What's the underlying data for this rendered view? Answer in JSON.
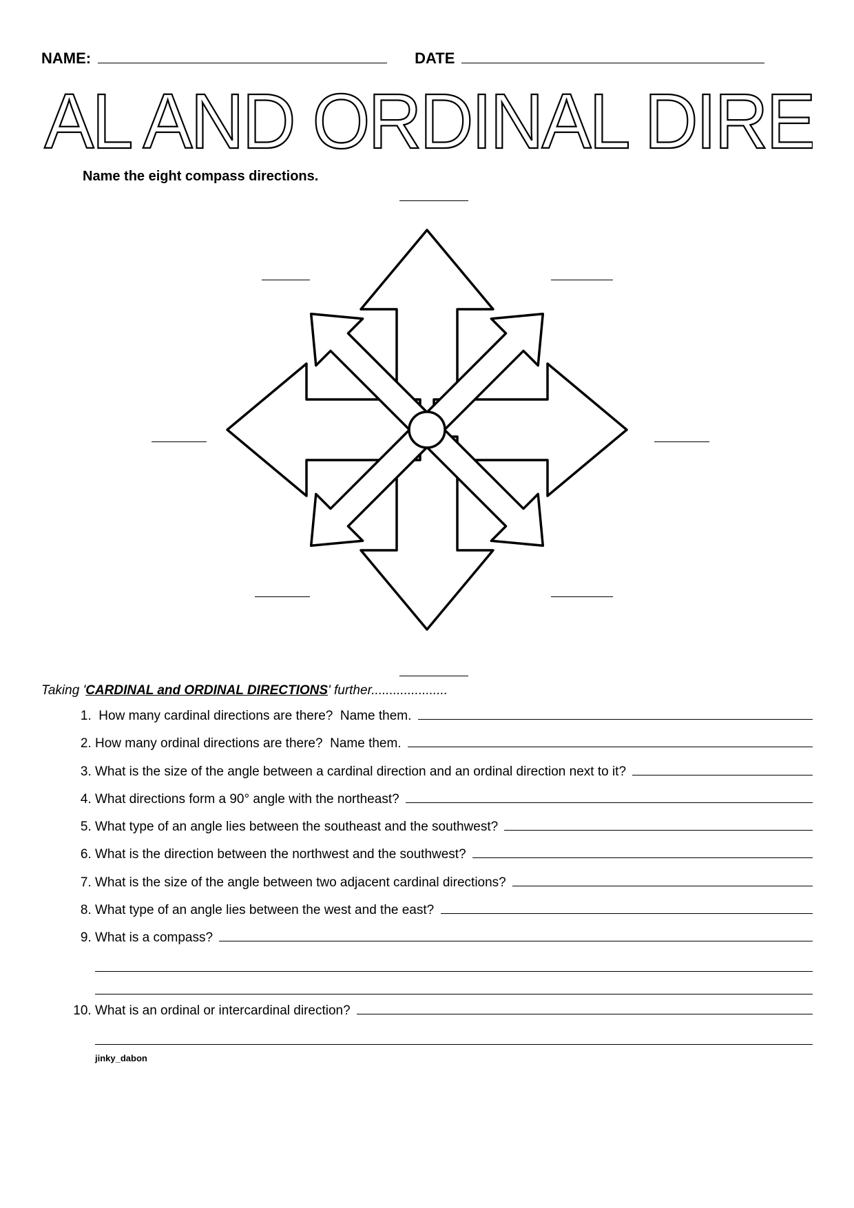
{
  "header": {
    "name_label": "NAME:",
    "date_label": "DATE"
  },
  "title": "CARDINAL AND ORDINAL DIRECTIONS",
  "instruction": "Name the eight compass directions.",
  "compass": {
    "stroke": "#000000",
    "fill": "#ffffff",
    "stroke_width": 3.5
  },
  "further": {
    "prefix": "Taking '",
    "bold": "CARDINAL and ORDINAL DIRECTIONS",
    "suffix": "' further....................."
  },
  "questions": [
    {
      "text": " How many cardinal directions are there?  Name them. ",
      "extra_lines": 0
    },
    {
      "text": "How many ordinal directions are there?  Name them. ",
      "extra_lines": 0
    },
    {
      "text": "What is the size of the angle between a cardinal direction and an ordinal direction next to it? ",
      "extra_lines": 0
    },
    {
      "text": "What directions form a 90° angle with the northeast? ",
      "extra_lines": 0
    },
    {
      "text": "What type of an angle lies between the southeast and the southwest? ",
      "extra_lines": 0
    },
    {
      "text": "What is the direction between the northwest and the southwest? ",
      "extra_lines": 0
    },
    {
      "text": "What is the size of the angle between two adjacent cardinal directions? ",
      "extra_lines": 0
    },
    {
      "text": "What type of an angle lies between the west and the east? ",
      "extra_lines": 0
    },
    {
      "text": "What is a compass? ",
      "extra_lines": 2
    },
    {
      "text": "What is an ordinal or intercardinal direction? ",
      "extra_lines": 1
    }
  ],
  "footer": "jinky_dabon"
}
